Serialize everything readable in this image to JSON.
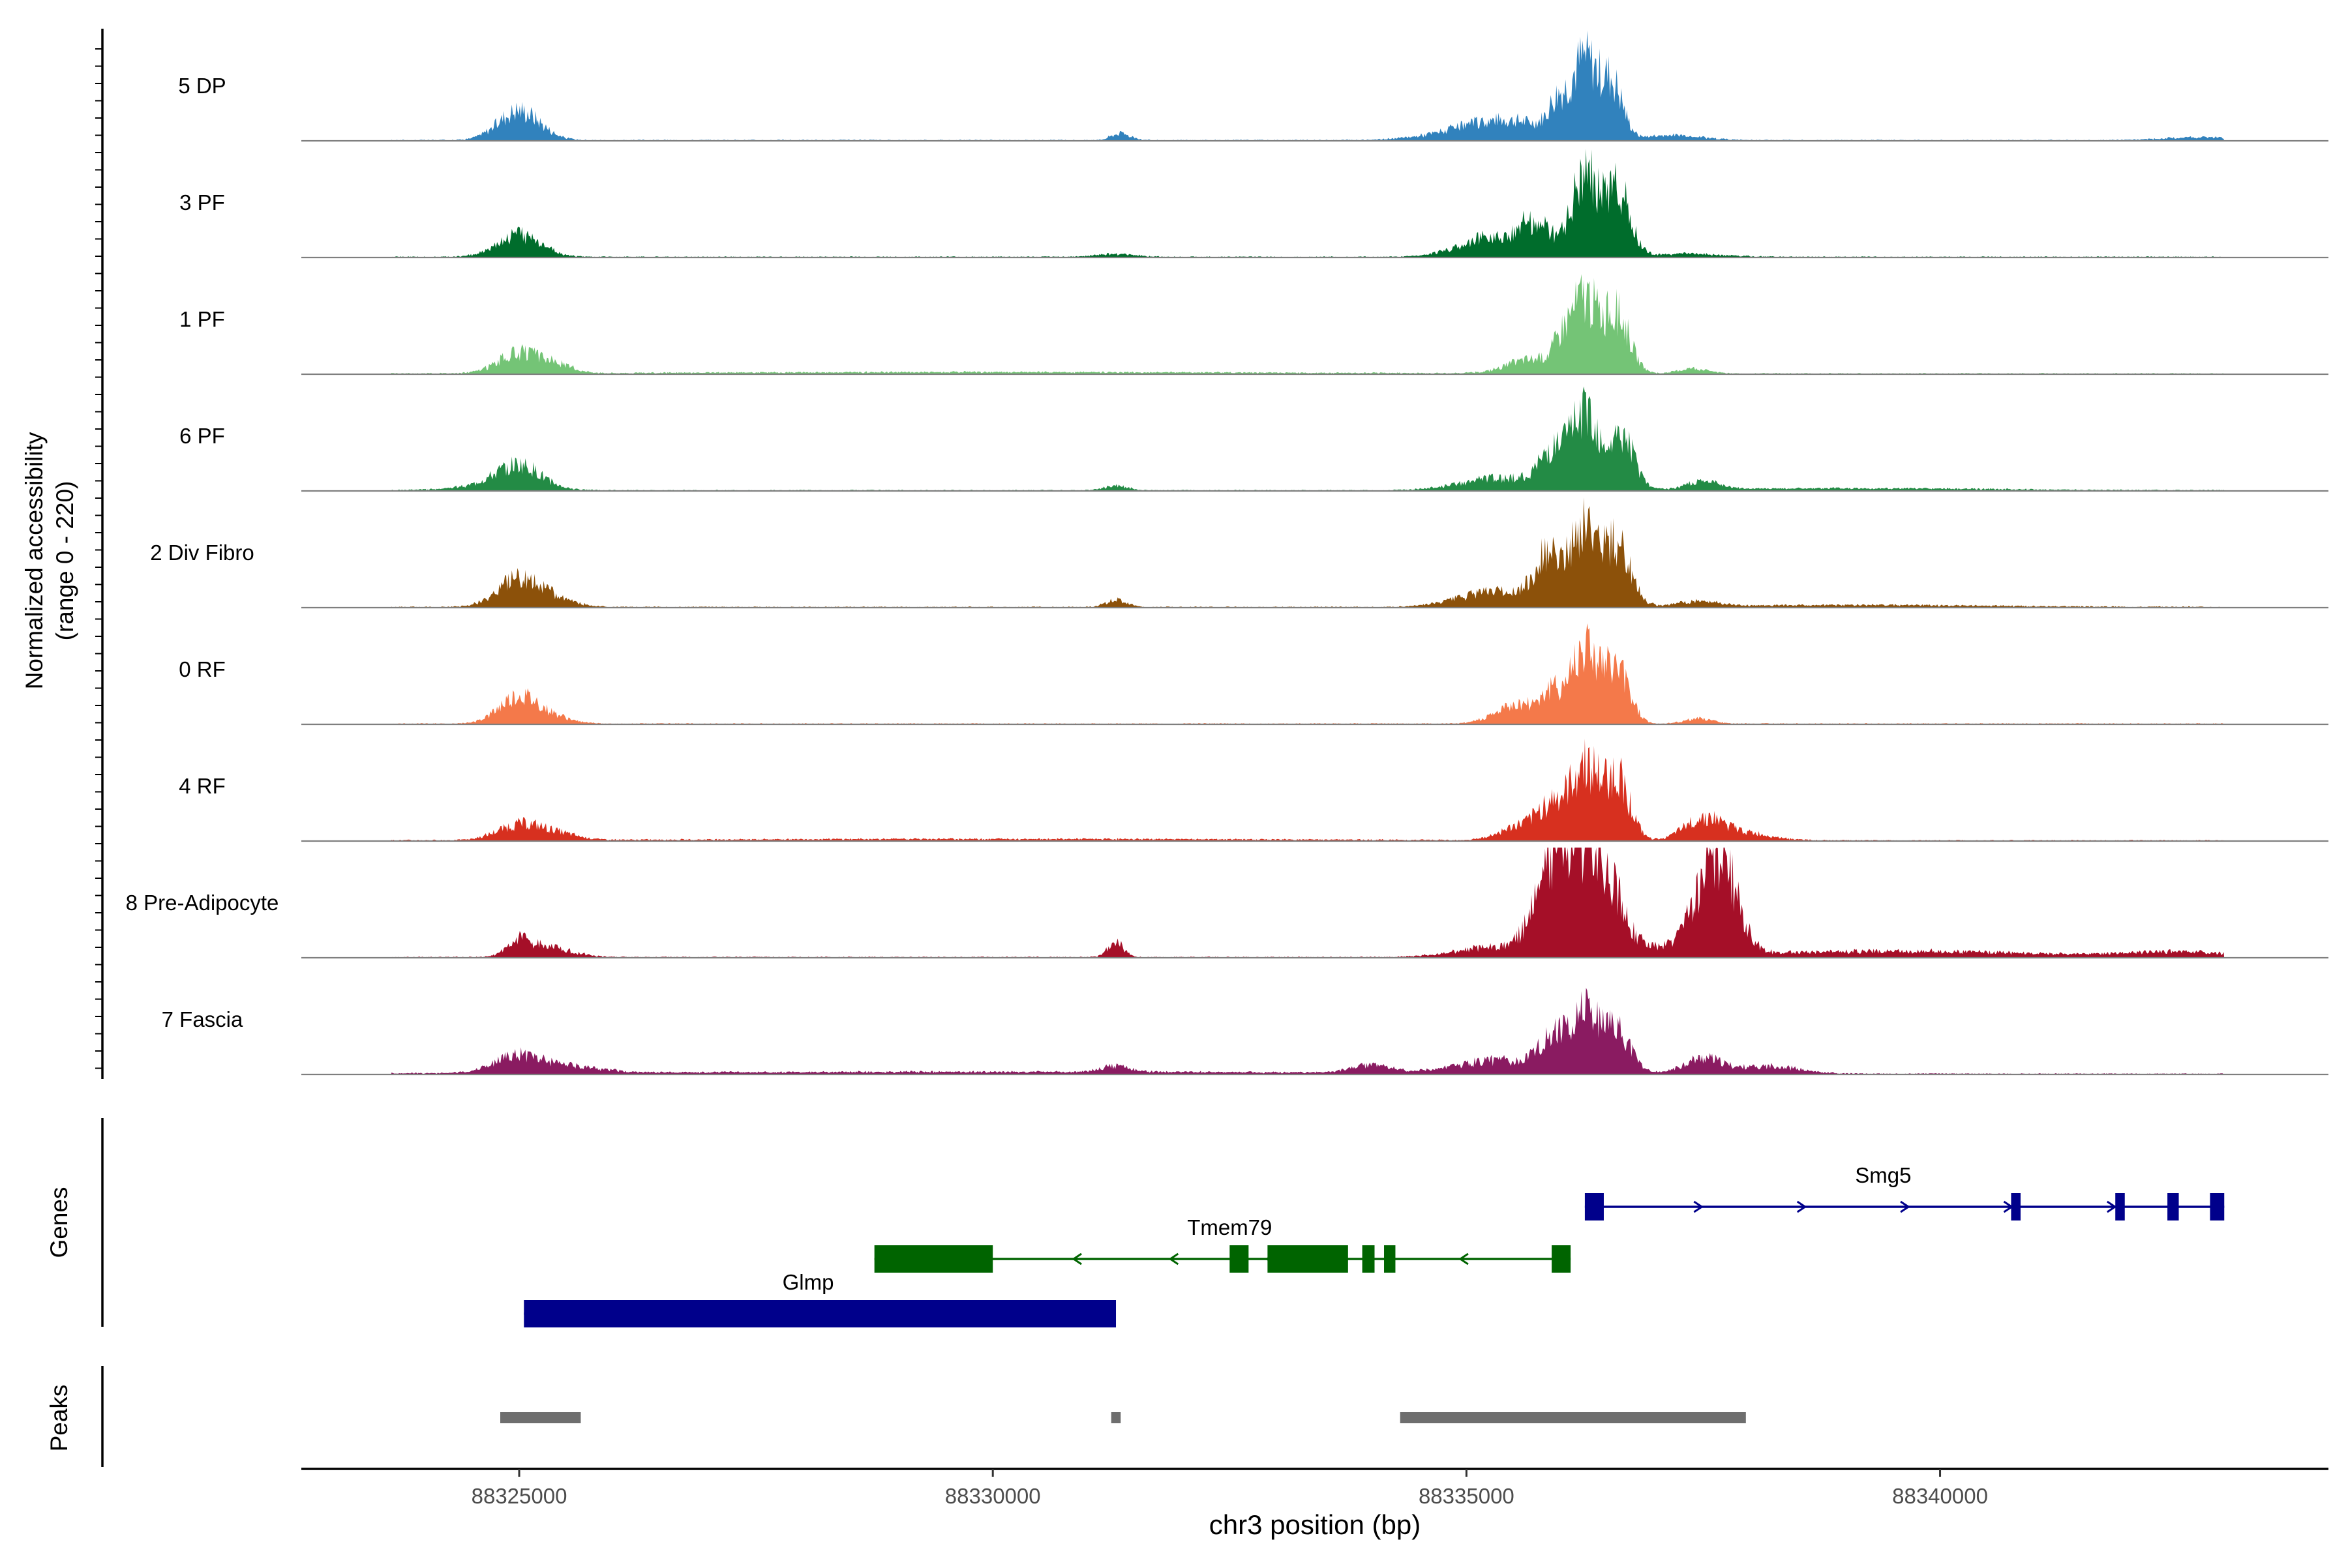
{
  "chart_data": {
    "type": "coverage-track",
    "y_axis_title": "Normalized accessibility",
    "y_axis_subtitle": "(range 0 - 220)",
    "y_range": [
      0,
      220
    ],
    "x_axis_title": "chr3 position (bp)",
    "x_range": [
      88322700,
      88344100
    ],
    "x_ticks": [
      88325000,
      88330000,
      88335000,
      88340000
    ],
    "x_tick_labels": [
      "88325000",
      "88330000",
      "88335000",
      "88340000"
    ],
    "tracks": [
      {
        "name": "5 DP",
        "color": "#3182BD",
        "peaks": [
          [
            88325000,
            60,
            220
          ],
          [
            88331350,
            14,
            100
          ],
          [
            88335400,
            40,
            520
          ],
          [
            88336250,
            150,
            150
          ],
          [
            88336550,
            95,
            110
          ],
          [
            88335950,
            45,
            90
          ],
          [
            88337200,
            10,
            300
          ],
          [
            88342800,
            6,
            400
          ]
        ]
      },
      {
        "name": "3 PF",
        "color": "#006D2C",
        "peaks": [
          [
            88325000,
            45,
            230
          ],
          [
            88331300,
            6,
            200
          ],
          [
            88335300,
            40,
            350
          ],
          [
            88335800,
            45,
            120
          ],
          [
            88336250,
            160,
            140
          ],
          [
            88336600,
            130,
            130
          ],
          [
            88335600,
            30,
            90
          ],
          [
            88337300,
            6,
            400
          ]
        ]
      },
      {
        "name": "1 PF",
        "color": "#74C476",
        "peaks": [
          [
            88325000,
            40,
            220
          ],
          [
            88325400,
            14,
            180
          ],
          [
            88335700,
            28,
            260
          ],
          [
            88336250,
            150,
            150
          ],
          [
            88336600,
            110,
            130
          ],
          [
            88336000,
            35,
            90
          ],
          [
            88337400,
            10,
            150
          ],
          [
            88330000,
            3,
            3000
          ]
        ]
      },
      {
        "name": "6 PF",
        "color": "#238B45",
        "peaks": [
          [
            88325000,
            40,
            220
          ],
          [
            88324800,
            12,
            400
          ],
          [
            88331300,
            10,
            120
          ],
          [
            88335400,
            25,
            420
          ],
          [
            88335900,
            60,
            130
          ],
          [
            88336250,
            155,
            150
          ],
          [
            88336650,
            100,
            130
          ],
          [
            88337500,
            15,
            180
          ],
          [
            88339000,
            4,
            1500
          ]
        ]
      },
      {
        "name": "2 Div Fibro",
        "color": "#8C510A",
        "peaks": [
          [
            88325000,
            55,
            230
          ],
          [
            88325400,
            12,
            220
          ],
          [
            88331300,
            14,
            110
          ],
          [
            88335300,
            30,
            380
          ],
          [
            88335850,
            90,
            140
          ],
          [
            88336250,
            160,
            150
          ],
          [
            88336600,
            110,
            140
          ],
          [
            88337450,
            10,
            200
          ],
          [
            88339000,
            4,
            1500
          ]
        ]
      },
      {
        "name": "0 RF",
        "color": "#F4794A",
        "peaks": [
          [
            88325000,
            55,
            210
          ],
          [
            88325400,
            10,
            180
          ],
          [
            88335600,
            40,
            260
          ],
          [
            88335900,
            40,
            110
          ],
          [
            88336250,
            155,
            150
          ],
          [
            88336600,
            100,
            130
          ],
          [
            88337450,
            10,
            150
          ]
        ]
      },
      {
        "name": "4 RF",
        "color": "#D7301F",
        "peaks": [
          [
            88325000,
            30,
            230
          ],
          [
            88325400,
            12,
            220
          ],
          [
            88335600,
            30,
            220
          ],
          [
            88335900,
            60,
            130
          ],
          [
            88336250,
            150,
            150
          ],
          [
            88336600,
            120,
            130
          ],
          [
            88337500,
            40,
            200
          ],
          [
            88337900,
            15,
            300
          ],
          [
            88330000,
            3,
            3000
          ]
        ]
      },
      {
        "name": "8 Pre-Adipocyte",
        "color": "#A50F28",
        "peaks": [
          [
            88325000,
            30,
            120
          ],
          [
            88325300,
            20,
            250
          ],
          [
            88331300,
            30,
            80
          ],
          [
            88335300,
            20,
            400
          ],
          [
            88335900,
            90,
            200
          ],
          [
            88336150,
            200,
            230
          ],
          [
            88336500,
            120,
            150
          ],
          [
            88336850,
            20,
            150
          ],
          [
            88337300,
            15,
            200
          ],
          [
            88337700,
            130,
            180
          ],
          [
            88337550,
            80,
            200
          ],
          [
            88339500,
            12,
            1500
          ],
          [
            88342500,
            10,
            500
          ]
        ]
      },
      {
        "name": "7 Fascia",
        "color": "#8A1B61",
        "peaks": [
          [
            88325000,
            35,
            250
          ],
          [
            88325600,
            12,
            300
          ],
          [
            88331300,
            12,
            150
          ],
          [
            88334000,
            15,
            200
          ],
          [
            88335300,
            25,
            400
          ],
          [
            88335900,
            60,
            150
          ],
          [
            88336250,
            115,
            150
          ],
          [
            88336600,
            80,
            140
          ],
          [
            88337500,
            30,
            200
          ],
          [
            88338200,
            15,
            300
          ],
          [
            88330000,
            4,
            4000
          ]
        ]
      }
    ],
    "genes_label": "Genes",
    "genes": [
      {
        "name": "Smg5",
        "strand": "+",
        "color": "#00008B",
        "start": 88336250,
        "end": 88343000,
        "exons": [
          [
            88336250,
            88336450
          ],
          [
            88340750,
            88340850
          ],
          [
            88341850,
            88341950
          ],
          [
            88342400,
            88342520
          ],
          [
            88342850,
            88343000
          ]
        ],
        "label_pos": 88339400
      },
      {
        "name": "Tmem79",
        "strand": "-",
        "color": "#006400",
        "start": 88328750,
        "end": 88336100,
        "exons": [
          [
            88328750,
            88330000
          ],
          [
            88332500,
            88332700
          ],
          [
            88332900,
            88333750
          ],
          [
            88333900,
            88334030
          ],
          [
            88334130,
            88334250
          ],
          [
            88335900,
            88336100
          ]
        ],
        "label_pos": 88332500
      },
      {
        "name": "Glmp",
        "strand": "+",
        "color": "#00008B",
        "start": 88325050,
        "end": 88331300,
        "exons": [
          [
            88325050,
            88331300
          ]
        ],
        "label_pos": 88328050
      }
    ],
    "peaks_label": "Peaks",
    "peak_regions": [
      [
        88324800,
        88325650
      ],
      [
        88331250,
        88331350
      ],
      [
        88334300,
        88337950
      ]
    ]
  }
}
